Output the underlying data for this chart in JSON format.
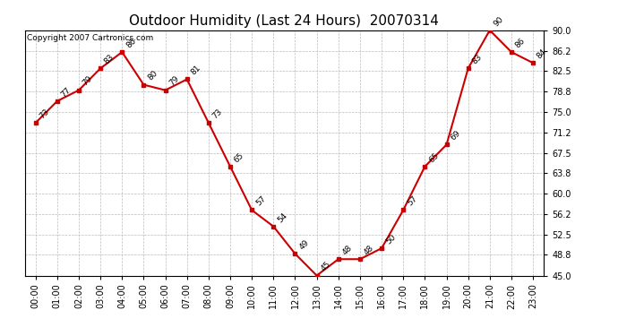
{
  "title": "Outdoor Humidity (Last 24 Hours)  20070314",
  "copyright": "Copyright 2007 Cartronics.com",
  "hours": [
    0,
    1,
    2,
    3,
    4,
    5,
    6,
    7,
    8,
    9,
    10,
    11,
    12,
    13,
    14,
    15,
    16,
    17,
    18,
    19,
    20,
    21,
    22,
    23
  ],
  "humidity": [
    73,
    77,
    79,
    83,
    86,
    80,
    79,
    81,
    73,
    65,
    57,
    54,
    49,
    45,
    48,
    48,
    50,
    57,
    65,
    69,
    83,
    90,
    86,
    84
  ],
  "x_labels": [
    "00:00",
    "01:00",
    "02:00",
    "03:00",
    "04:00",
    "05:00",
    "06:00",
    "07:00",
    "08:00",
    "09:00",
    "10:00",
    "11:00",
    "12:00",
    "13:00",
    "14:00",
    "15:00",
    "16:00",
    "17:00",
    "18:00",
    "19:00",
    "20:00",
    "21:00",
    "22:00",
    "23:00"
  ],
  "y_ticks": [
    45.0,
    48.8,
    52.5,
    56.2,
    60.0,
    63.8,
    67.5,
    71.2,
    75.0,
    78.8,
    82.5,
    86.2,
    90.0
  ],
  "y_min": 45.0,
  "y_max": 90.0,
  "line_color": "#cc0000",
  "marker_color": "#cc0000",
  "bg_color": "#ffffff",
  "grid_color": "#bbbbbb",
  "title_fontsize": 11,
  "label_fontsize": 7,
  "annot_fontsize": 6.5,
  "copyright_fontsize": 6.5
}
